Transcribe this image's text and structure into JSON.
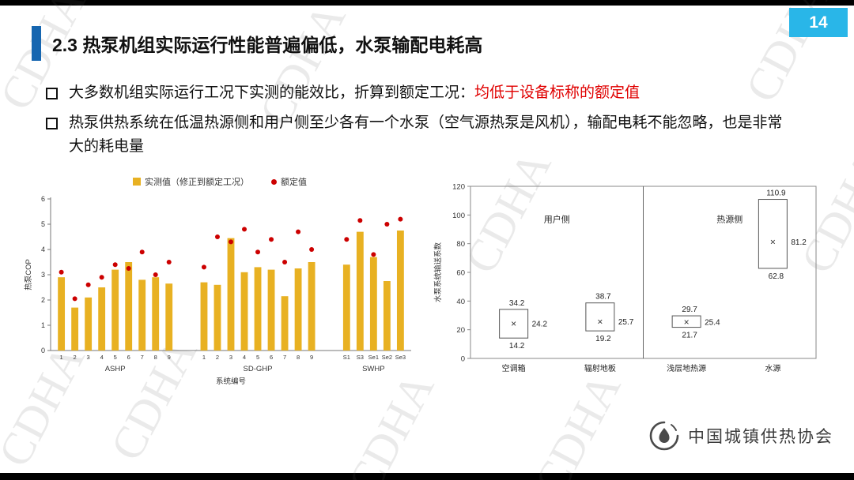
{
  "page_number": "14",
  "title": "2.3 热泵机组实际运行性能普遍偏低，水泵输配电耗高",
  "bullets": [
    {
      "black": "大多数机组实际运行工况下实测的能效比，折算到额定工况：",
      "red": "均低于设备标称的额定值"
    },
    {
      "black": "热泵供热系统在低温热源侧和用户侧至少各有一个水泵（空气源热泵是风机），输配电耗不能忽略，也是非常大的耗电量",
      "red": ""
    }
  ],
  "watermark": {
    "text": "CDHA"
  },
  "footer": {
    "org_name": "中国城镇供热协会"
  },
  "colors": {
    "accent_blue": "#1666B0",
    "badge_cyan": "#29B6E8",
    "bar_yellow": "#E8B122",
    "dot_red": "#CC0000",
    "highlight_red": "#E00000"
  },
  "chart_data": [
    {
      "type": "bar",
      "title": "",
      "ylabel": "热泵COP",
      "xlabel": "系统编号",
      "ylim": [
        0,
        6
      ],
      "legend": [
        "实测值（修正到额定工况）",
        "额定值"
      ],
      "bar_color": "#E8B122",
      "dot_color": "#CC0000",
      "groups": [
        {
          "name": "ASHP",
          "labels": [
            "1",
            "2",
            "3",
            "4",
            "5",
            "6",
            "7",
            "8",
            "9"
          ],
          "measured": [
            2.9,
            1.7,
            2.1,
            2.5,
            3.2,
            3.5,
            2.8,
            2.9,
            2.65
          ],
          "rated": [
            3.1,
            2.05,
            2.6,
            2.9,
            3.4,
            3.25,
            3.9,
            3.0,
            3.5
          ]
        },
        {
          "name": "SD-GHP",
          "labels": [
            "1",
            "2",
            "3",
            "4",
            "5",
            "6",
            "7",
            "8",
            "9"
          ],
          "measured": [
            2.7,
            2.6,
            4.45,
            3.1,
            3.3,
            3.2,
            2.15,
            3.25,
            3.5
          ],
          "rated": [
            3.3,
            4.5,
            4.3,
            4.8,
            3.9,
            4.4,
            3.5,
            4.7,
            4.0
          ]
        },
        {
          "name": "SWHP",
          "labels": [
            "S1",
            "S3",
            "Se1",
            "Se2",
            "Se3"
          ],
          "measured": [
            3.4,
            4.7,
            3.7,
            2.75,
            4.75
          ],
          "rated": [
            4.4,
            5.15,
            3.8,
            5.0,
            5.2
          ]
        }
      ]
    },
    {
      "type": "range",
      "title": "",
      "ylabel": "水泵系统输送系数",
      "ylim": [
        0,
        120
      ],
      "yticks": [
        0,
        20,
        40,
        60,
        80,
        100,
        120
      ],
      "region_labels": [
        "用户侧",
        "热源侧"
      ],
      "region_label_y": 95,
      "categories": [
        {
          "name": "空调箱",
          "max": 34.2,
          "mean": 24.2,
          "min": 14.2
        },
        {
          "name": "辐射地板",
          "max": 38.7,
          "mean": 25.7,
          "min": 19.2
        },
        {
          "name": "浅层地热源",
          "max": 29.7,
          "mean": 25.4,
          "min": 21.7
        },
        {
          "name": "水源",
          "max": 110.9,
          "mean": 81.2,
          "min": 62.8
        }
      ]
    }
  ]
}
